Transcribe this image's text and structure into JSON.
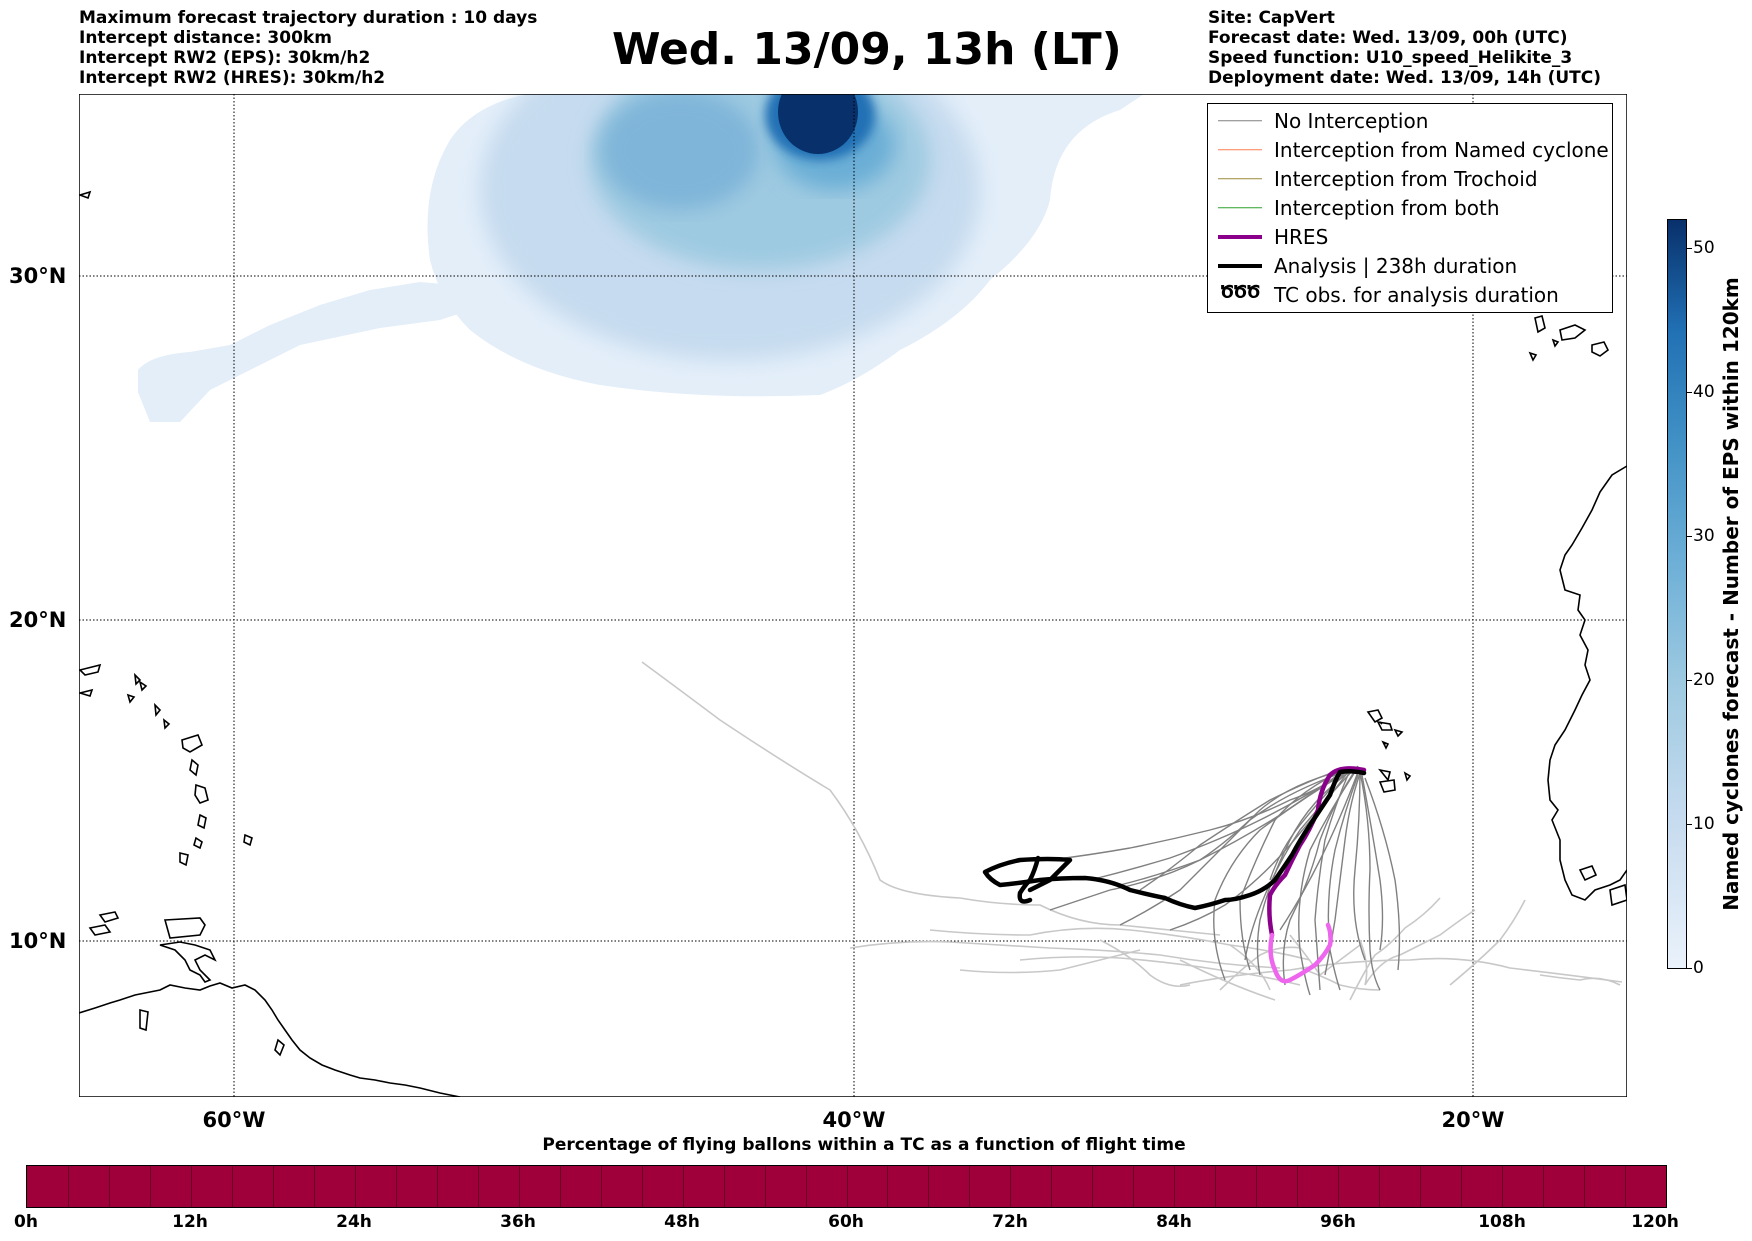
{
  "header": {
    "info_left": [
      "Maximum forecast trajectory duration : 10 days",
      "Intercept distance: 300km",
      "Intercept RW2 (EPS):  30km/h2",
      "Intercept RW2 (HRES): 30km/h2"
    ],
    "title": "Wed. 13/09, 13h (LT)",
    "info_right": [
      "Site: CapVert",
      "Forecast date: Wed. 13/09, 00h (UTC)",
      "Speed function: U10_speed_Helikite_3",
      "Deployment date: Wed. 13/09, 14h (UTC)"
    ]
  },
  "map": {
    "lon_range": [
      -65,
      -15
    ],
    "lat_range": [
      5,
      35
    ],
    "lat_labels": [
      "30°N",
      "20°N",
      "10°N"
    ],
    "lat_values": [
      30,
      20,
      10
    ],
    "lon_labels": [
      "60°W",
      "40°W",
      "20°W"
    ],
    "lon_values": [
      -60,
      -40,
      -20
    ],
    "colors": {
      "no_interception": "#808080",
      "named_cyclone": "#ff7f50",
      "trochoid": "#9a8a3a",
      "both": "#2ca02c",
      "hres": "#8b008b",
      "hres_late": "#ee66ee",
      "analysis": "#000000",
      "ensemble_faint": "#c8c8c8"
    }
  },
  "legend": {
    "items": [
      {
        "label": "No Interception",
        "color": "#808080",
        "width": 1.5
      },
      {
        "label": "Interception from Named cyclone",
        "color": "#ff7f50",
        "width": 1.5
      },
      {
        "label": "Interception from Trochoid",
        "color": "#9a8a3a",
        "width": 1.5
      },
      {
        "label": "Interception from both",
        "color": "#2ca02c",
        "width": 1.5
      },
      {
        "label": "HRES",
        "color": "#8b008b",
        "width": 4
      },
      {
        "label": "Analysis | 238h duration",
        "color": "#000000",
        "width": 4
      },
      {
        "label": "TC obs. for analysis duration",
        "color": "#000000",
        "width": 0
      }
    ],
    "tc_glyph": "ԾԾԾ"
  },
  "colorbar": {
    "label": "Named cyclones forecast - Number of EPS within 120km",
    "ticks": [
      "0",
      "10",
      "20",
      "30",
      "40",
      "50"
    ],
    "tick_values": [
      0,
      10,
      20,
      30,
      40,
      50
    ],
    "max": 52
  },
  "time_bar": {
    "title": "Percentage of flying ballons within a TC as a function of flight time",
    "color": "#a0003a",
    "ticks": [
      "0h",
      "12h",
      "24h",
      "36h",
      "48h",
      "60h",
      "72h",
      "84h",
      "96h",
      "108h",
      "120h"
    ]
  }
}
